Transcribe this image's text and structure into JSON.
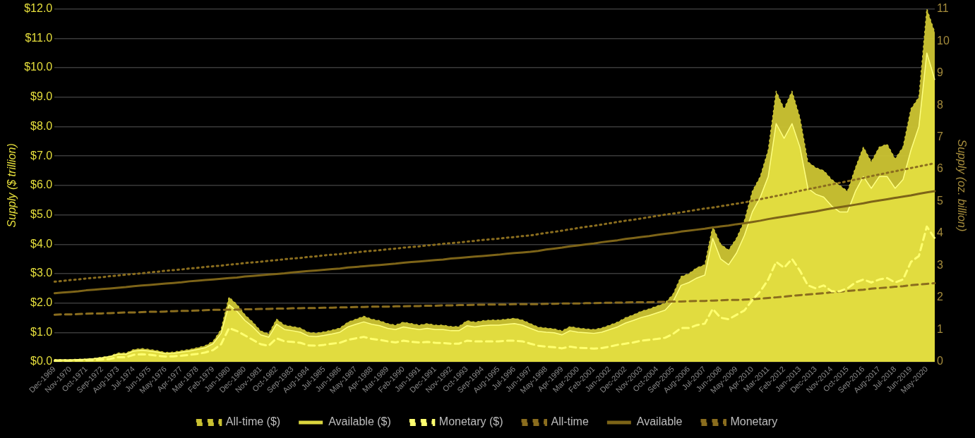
{
  "chart_data": {
    "type": "line",
    "ylabel": "Supply ($ trillion)",
    "y2label": "Supply (oz. billion)",
    "categories": [
      "Dec-1969",
      null,
      "Nov-1970",
      null,
      "Oct-1971",
      null,
      "Sep-1972",
      null,
      "Aug-1973",
      null,
      "Jul-1974",
      null,
      "Jun-1975",
      null,
      "May-1976",
      null,
      "Apr-1977",
      null,
      "Mar-1978",
      null,
      "Feb-1979",
      null,
      "Jan-1980",
      null,
      "Dec-1980",
      null,
      "Nov-1981",
      null,
      "Oct-1982",
      null,
      "Sep-1983",
      null,
      "Aug-1984",
      null,
      "Jul-1985",
      null,
      "Jun-1986",
      null,
      "May-1987",
      null,
      "Apr-1988",
      null,
      "Mar-1989",
      null,
      "Feb-1990",
      null,
      "Jan-1991",
      null,
      "Dec-1991",
      null,
      "Nov-1992",
      null,
      "Oct-1993",
      null,
      "Sep-1994",
      null,
      "Aug-1995",
      null,
      "Jul-1996",
      null,
      "Jun-1997",
      null,
      "May-1998",
      null,
      "Apr-1999",
      null,
      "Mar-2000",
      null,
      "Feb-2001",
      null,
      "Jan-2002",
      null,
      "Dec-2002",
      null,
      "Nov-2003",
      null,
      "Oct-2004",
      null,
      "Sep-2005",
      null,
      "Aug-2006",
      null,
      "Jul-2007",
      null,
      "Jun-2008",
      null,
      "May-2009",
      null,
      "Apr-2010",
      null,
      "Mar-2011",
      null,
      "Feb-2012",
      null,
      "Jan-2013",
      null,
      "Dec-2013",
      null,
      "Nov-2014",
      null,
      "Oct-2015",
      null,
      "Sep-2016",
      null,
      "Aug-2017",
      null,
      "Jul-2018",
      null,
      "Jun-2019",
      null,
      "May-2020",
      null
    ],
    "series": [
      {
        "name": "All-time ($)",
        "type": "area",
        "line_style": "dotted",
        "color": "#c9c132",
        "values": [
          0.08,
          0.08,
          0.08,
          0.09,
          0.1,
          0.12,
          0.16,
          0.2,
          0.3,
          0.3,
          0.42,
          0.45,
          0.42,
          0.38,
          0.32,
          0.33,
          0.38,
          0.42,
          0.48,
          0.55,
          0.7,
          1.1,
          2.2,
          1.95,
          1.6,
          1.35,
          1.05,
          0.95,
          1.45,
          1.25,
          1.2,
          1.15,
          1.0,
          0.98,
          1.02,
          1.08,
          1.15,
          1.35,
          1.45,
          1.55,
          1.45,
          1.4,
          1.3,
          1.25,
          1.35,
          1.3,
          1.25,
          1.3,
          1.25,
          1.25,
          1.2,
          1.2,
          1.4,
          1.35,
          1.4,
          1.42,
          1.42,
          1.45,
          1.48,
          1.42,
          1.3,
          1.18,
          1.15,
          1.12,
          1.05,
          1.2,
          1.15,
          1.12,
          1.1,
          1.15,
          1.25,
          1.35,
          1.5,
          1.6,
          1.72,
          1.8,
          1.9,
          2.0,
          2.3,
          2.9,
          3.0,
          3.2,
          3.3,
          4.6,
          4.0,
          3.8,
          4.2,
          4.8,
          5.8,
          6.3,
          7.2,
          9.2,
          8.6,
          9.2,
          8.3,
          6.8,
          6.6,
          6.5,
          6.2,
          6.0,
          5.8,
          6.6,
          7.3,
          6.8,
          7.3,
          7.4,
          6.9,
          7.3,
          8.6,
          9.0,
          12.0,
          11.2
        ]
      },
      {
        "name": "Available ($)",
        "type": "area",
        "line_style": "solid",
        "color": "#e2dd40",
        "values": [
          0.07,
          0.07,
          0.07,
          0.08,
          0.09,
          0.11,
          0.14,
          0.18,
          0.26,
          0.26,
          0.37,
          0.4,
          0.37,
          0.33,
          0.28,
          0.29,
          0.33,
          0.37,
          0.42,
          0.48,
          0.62,
          0.97,
          1.94,
          1.72,
          1.41,
          1.19,
          0.92,
          0.84,
          1.28,
          1.1,
          1.06,
          1.01,
          0.88,
          0.86,
          0.9,
          0.95,
          1.01,
          1.19,
          1.28,
          1.36,
          1.28,
          1.23,
          1.14,
          1.1,
          1.19,
          1.14,
          1.1,
          1.14,
          1.1,
          1.1,
          1.06,
          1.06,
          1.23,
          1.19,
          1.23,
          1.25,
          1.25,
          1.28,
          1.3,
          1.25,
          1.14,
          1.04,
          1.01,
          0.99,
          0.92,
          1.06,
          1.01,
          0.99,
          0.97,
          1.01,
          1.1,
          1.19,
          1.32,
          1.41,
          1.51,
          1.58,
          1.67,
          1.76,
          2.05,
          2.6,
          2.7,
          2.85,
          2.95,
          4.2,
          3.5,
          3.3,
          3.7,
          4.3,
          5.1,
          5.6,
          6.3,
          8.1,
          7.6,
          8.1,
          7.3,
          5.9,
          5.7,
          5.6,
          5.3,
          5.1,
          5.1,
          5.8,
          6.3,
          5.9,
          6.3,
          6.3,
          5.9,
          6.2,
          7.2,
          8.0,
          10.5,
          9.6
        ]
      },
      {
        "name": "Monetary ($)",
        "type": "line",
        "line_style": "dashed",
        "color": "#ffff70",
        "values": [
          0.04,
          0.04,
          0.04,
          0.05,
          0.05,
          0.06,
          0.08,
          0.1,
          0.16,
          0.16,
          0.24,
          0.26,
          0.24,
          0.21,
          0.18,
          0.19,
          0.21,
          0.24,
          0.27,
          0.32,
          0.4,
          0.6,
          1.15,
          1.05,
          0.9,
          0.75,
          0.6,
          0.55,
          0.8,
          0.7,
          0.68,
          0.65,
          0.56,
          0.55,
          0.58,
          0.62,
          0.65,
          0.75,
          0.8,
          0.85,
          0.78,
          0.75,
          0.7,
          0.66,
          0.72,
          0.68,
          0.66,
          0.68,
          0.65,
          0.64,
          0.62,
          0.62,
          0.72,
          0.7,
          0.7,
          0.7,
          0.7,
          0.72,
          0.72,
          0.7,
          0.62,
          0.55,
          0.52,
          0.5,
          0.46,
          0.52,
          0.48,
          0.47,
          0.45,
          0.47,
          0.52,
          0.58,
          0.62,
          0.66,
          0.72,
          0.75,
          0.78,
          0.82,
          0.95,
          1.15,
          1.15,
          1.25,
          1.3,
          1.8,
          1.5,
          1.45,
          1.6,
          1.75,
          2.1,
          2.4,
          2.8,
          3.4,
          3.2,
          3.5,
          3.1,
          2.6,
          2.5,
          2.6,
          2.4,
          2.4,
          2.5,
          2.7,
          2.8,
          2.7,
          2.8,
          2.85,
          2.7,
          2.8,
          3.4,
          3.6,
          4.6,
          4.2
        ]
      },
      {
        "name": "All-time",
        "type": "line",
        "axis": "y2",
        "line_style": "dotted",
        "color": "#8a6d1e",
        "values": [
          2.5,
          2.52,
          2.55,
          2.57,
          2.6,
          2.62,
          2.64,
          2.67,
          2.69,
          2.72,
          2.74,
          2.76,
          2.79,
          2.81,
          2.84,
          2.86,
          2.88,
          2.91,
          2.93,
          2.96,
          2.98,
          3.0,
          3.03,
          3.05,
          3.08,
          3.1,
          3.12,
          3.15,
          3.17,
          3.2,
          3.22,
          3.24,
          3.27,
          3.29,
          3.32,
          3.34,
          3.36,
          3.39,
          3.41,
          3.44,
          3.46,
          3.48,
          3.51,
          3.53,
          3.56,
          3.58,
          3.6,
          3.63,
          3.65,
          3.68,
          3.7,
          3.72,
          3.75,
          3.77,
          3.8,
          3.82,
          3.84,
          3.87,
          3.89,
          3.92,
          3.94,
          3.98,
          4.02,
          4.05,
          4.09,
          4.13,
          4.17,
          4.21,
          4.24,
          4.28,
          4.32,
          4.36,
          4.4,
          4.43,
          4.47,
          4.51,
          4.55,
          4.59,
          4.62,
          4.66,
          4.7,
          4.74,
          4.78,
          4.81,
          4.85,
          4.89,
          4.93,
          4.97,
          5.02,
          5.07,
          5.12,
          5.17,
          5.22,
          5.27,
          5.33,
          5.38,
          5.43,
          5.48,
          5.53,
          5.58,
          5.63,
          5.68,
          5.73,
          5.79,
          5.84,
          5.89,
          5.94,
          5.99,
          6.04,
          6.09,
          6.14,
          6.19
        ]
      },
      {
        "name": "Available",
        "type": "line",
        "axis": "y2",
        "line_style": "solid",
        "color": "#7d6418",
        "values": [
          2.14,
          2.16,
          2.18,
          2.2,
          2.23,
          2.25,
          2.27,
          2.29,
          2.31,
          2.33,
          2.36,
          2.38,
          2.4,
          2.42,
          2.44,
          2.46,
          2.48,
          2.51,
          2.53,
          2.55,
          2.57,
          2.59,
          2.61,
          2.63,
          2.66,
          2.68,
          2.7,
          2.72,
          2.74,
          2.76,
          2.79,
          2.81,
          2.83,
          2.85,
          2.87,
          2.89,
          2.91,
          2.94,
          2.96,
          2.98,
          3.0,
          3.02,
          3.04,
          3.06,
          3.09,
          3.11,
          3.13,
          3.15,
          3.17,
          3.19,
          3.22,
          3.24,
          3.26,
          3.28,
          3.3,
          3.32,
          3.34,
          3.37,
          3.39,
          3.41,
          3.43,
          3.46,
          3.5,
          3.53,
          3.56,
          3.6,
          3.63,
          3.66,
          3.69,
          3.73,
          3.76,
          3.79,
          3.83,
          3.86,
          3.89,
          3.92,
          3.96,
          3.99,
          4.02,
          4.06,
          4.09,
          4.12,
          4.15,
          4.19,
          4.22,
          4.25,
          4.29,
          4.32,
          4.36,
          4.4,
          4.45,
          4.49,
          4.53,
          4.57,
          4.61,
          4.65,
          4.69,
          4.74,
          4.78,
          4.82,
          4.86,
          4.9,
          4.94,
          4.99,
          5.03,
          5.07,
          5.11,
          5.15,
          5.19,
          5.24,
          5.28,
          5.32
        ]
      },
      {
        "name": "Monetary",
        "type": "line",
        "axis": "y2",
        "line_style": "dashed",
        "color": "#8a6d1e",
        "values": [
          1.47,
          1.48,
          1.48,
          1.49,
          1.5,
          1.51,
          1.51,
          1.52,
          1.53,
          1.54,
          1.54,
          1.55,
          1.56,
          1.56,
          1.57,
          1.58,
          1.59,
          1.59,
          1.6,
          1.61,
          1.62,
          1.62,
          1.63,
          1.63,
          1.64,
          1.64,
          1.65,
          1.65,
          1.66,
          1.66,
          1.67,
          1.67,
          1.68,
          1.68,
          1.69,
          1.69,
          1.7,
          1.7,
          1.71,
          1.71,
          1.72,
          1.72,
          1.72,
          1.73,
          1.73,
          1.74,
          1.74,
          1.75,
          1.75,
          1.76,
          1.76,
          1.77,
          1.77,
          1.78,
          1.78,
          1.79,
          1.79,
          1.79,
          1.8,
          1.8,
          1.8,
          1.8,
          1.81,
          1.81,
          1.82,
          1.82,
          1.82,
          1.83,
          1.83,
          1.84,
          1.84,
          1.85,
          1.85,
          1.86,
          1.86,
          1.86,
          1.87,
          1.87,
          1.88,
          1.88,
          1.89,
          1.9,
          1.9,
          1.91,
          1.92,
          1.93,
          1.93,
          1.94,
          1.95,
          1.97,
          1.99,
          2.01,
          2.03,
          2.06,
          2.08,
          2.1,
          2.12,
          2.14,
          2.17,
          2.19,
          2.21,
          2.23,
          2.25,
          2.28,
          2.3,
          2.32,
          2.34,
          2.36,
          2.39,
          2.41,
          2.43,
          2.45
        ]
      }
    ],
    "ylim": [
      0,
      12
    ],
    "yticks": [
      {
        "value": 0,
        "label": "$0.0"
      },
      {
        "value": 1,
        "label": "$1.0"
      },
      {
        "value": 2,
        "label": "$2.0"
      },
      {
        "value": 3,
        "label": "$3.0"
      },
      {
        "value": 4,
        "label": "$4.0"
      },
      {
        "value": 5,
        "label": "$5.0"
      },
      {
        "value": 6,
        "label": "$6.0"
      },
      {
        "value": 7,
        "label": "$7.0"
      },
      {
        "value": 8,
        "label": "$8.0"
      },
      {
        "value": 9,
        "label": "$9.0"
      },
      {
        "value": 10,
        "label": "$10.0"
      },
      {
        "value": 11,
        "label": "$11.0"
      },
      {
        "value": 12,
        "label": "$12.0"
      }
    ],
    "y2lim": [
      0,
      11
    ],
    "y2ticks": [
      0,
      1,
      2,
      3,
      4,
      5,
      6,
      7,
      8,
      9,
      10,
      11
    ],
    "grid": "y",
    "legend": "bottom",
    "marker": "none"
  }
}
